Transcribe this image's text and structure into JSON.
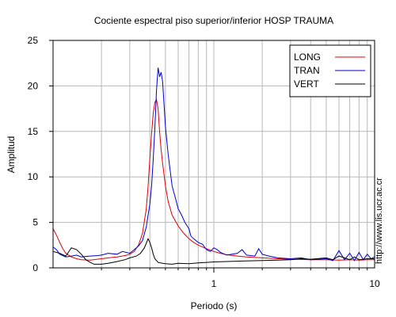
{
  "credit": "http://www.lis.ucr.ac.cr",
  "chart_data": {
    "type": "line",
    "title": "Cociente espectral piso superior/inferior  HOSP TRAUMA",
    "xlabel": "Periodo (s)",
    "ylabel": "Amplitud",
    "x_scale": "log",
    "xlim": [
      0.1,
      10
    ],
    "ylim": [
      0,
      25
    ],
    "x_ticks": [
      1,
      10
    ],
    "x_tick_labels": [
      "1",
      "10"
    ],
    "y_ticks": [
      0,
      5,
      10,
      15,
      20,
      25
    ],
    "y_tick_labels": [
      "0",
      "5",
      "10",
      "15",
      "20",
      "25"
    ],
    "grid": true,
    "legend_position": "top-right",
    "series": [
      {
        "name": "LONG",
        "color": "#e0000a",
        "points": [
          [
            0.1,
            4.3
          ],
          [
            0.105,
            3.6
          ],
          [
            0.11,
            2.8
          ],
          [
            0.115,
            2.1
          ],
          [
            0.12,
            1.6
          ],
          [
            0.13,
            1.2
          ],
          [
            0.14,
            1.0
          ],
          [
            0.15,
            0.9
          ],
          [
            0.17,
            0.85
          ],
          [
            0.2,
            1.0
          ],
          [
            0.22,
            1.1
          ],
          [
            0.25,
            1.2
          ],
          [
            0.28,
            1.35
          ],
          [
            0.3,
            1.5
          ],
          [
            0.32,
            1.8
          ],
          [
            0.34,
            2.5
          ],
          [
            0.36,
            3.8
          ],
          [
            0.38,
            6.5
          ],
          [
            0.39,
            9.0
          ],
          [
            0.4,
            12.0
          ],
          [
            0.41,
            14.8
          ],
          [
            0.42,
            17.0
          ],
          [
            0.43,
            18.2
          ],
          [
            0.44,
            18.5
          ],
          [
            0.45,
            17.5
          ],
          [
            0.46,
            15.0
          ],
          [
            0.47,
            13.0
          ],
          [
            0.48,
            11.5
          ],
          [
            0.5,
            9.0
          ],
          [
            0.52,
            7.3
          ],
          [
            0.55,
            5.8
          ],
          [
            0.6,
            4.6
          ],
          [
            0.65,
            3.8
          ],
          [
            0.7,
            3.2
          ],
          [
            0.75,
            2.8
          ],
          [
            0.8,
            2.5
          ],
          [
            0.9,
            2.1
          ],
          [
            1.0,
            1.8
          ],
          [
            1.1,
            1.6
          ],
          [
            1.2,
            1.45
          ],
          [
            1.4,
            1.3
          ],
          [
            1.6,
            1.2
          ],
          [
            2.0,
            1.1
          ],
          [
            2.5,
            1.0
          ],
          [
            3.0,
            0.95
          ],
          [
            4.0,
            0.9
          ],
          [
            5.0,
            0.9
          ],
          [
            6.0,
            0.85
          ],
          [
            7.0,
            0.9
          ],
          [
            8.0,
            0.85
          ],
          [
            9.0,
            0.9
          ],
          [
            10.0,
            0.9
          ]
        ]
      },
      {
        "name": "TRAN",
        "color": "#0000d0",
        "points": [
          [
            0.1,
            2.3
          ],
          [
            0.105,
            2.0
          ],
          [
            0.11,
            1.5
          ],
          [
            0.12,
            1.2
          ],
          [
            0.13,
            1.3
          ],
          [
            0.14,
            1.4
          ],
          [
            0.15,
            1.2
          ],
          [
            0.16,
            1.25
          ],
          [
            0.17,
            1.3
          ],
          [
            0.19,
            1.35
          ],
          [
            0.2,
            1.4
          ],
          [
            0.22,
            1.6
          ],
          [
            0.25,
            1.5
          ],
          [
            0.27,
            1.8
          ],
          [
            0.3,
            1.6
          ],
          [
            0.32,
            2.0
          ],
          [
            0.34,
            2.4
          ],
          [
            0.36,
            3.0
          ],
          [
            0.38,
            4.5
          ],
          [
            0.4,
            7.0
          ],
          [
            0.41,
            9.0
          ],
          [
            0.42,
            12.0
          ],
          [
            0.43,
            15.5
          ],
          [
            0.44,
            19.5
          ],
          [
            0.45,
            22.0
          ],
          [
            0.46,
            21.0
          ],
          [
            0.47,
            21.5
          ],
          [
            0.48,
            20.5
          ],
          [
            0.49,
            18.0
          ],
          [
            0.5,
            15.5
          ],
          [
            0.52,
            12.5
          ],
          [
            0.55,
            9.0
          ],
          [
            0.58,
            7.5
          ],
          [
            0.6,
            6.5
          ],
          [
            0.63,
            5.8
          ],
          [
            0.66,
            5.0
          ],
          [
            0.7,
            4.3
          ],
          [
            0.72,
            3.5
          ],
          [
            0.75,
            3.2
          ],
          [
            0.8,
            2.8
          ],
          [
            0.85,
            2.6
          ],
          [
            0.9,
            2.0
          ],
          [
            0.95,
            1.8
          ],
          [
            1.0,
            2.2
          ],
          [
            1.05,
            2.0
          ],
          [
            1.1,
            1.7
          ],
          [
            1.2,
            1.4
          ],
          [
            1.3,
            1.5
          ],
          [
            1.4,
            1.6
          ],
          [
            1.5,
            2.0
          ],
          [
            1.6,
            1.4
          ],
          [
            1.8,
            1.3
          ],
          [
            1.9,
            2.1
          ],
          [
            2.0,
            1.5
          ],
          [
            2.2,
            1.3
          ],
          [
            2.5,
            1.1
          ],
          [
            3.0,
            1.0
          ],
          [
            3.5,
            1.1
          ],
          [
            4.0,
            0.9
          ],
          [
            5.0,
            1.0
          ],
          [
            5.5,
            0.8
          ],
          [
            6.0,
            1.9
          ],
          [
            6.5,
            0.9
          ],
          [
            7.0,
            1.6
          ],
          [
            7.5,
            0.8
          ],
          [
            8.0,
            1.7
          ],
          [
            8.5,
            0.9
          ],
          [
            9.0,
            1.5
          ],
          [
            9.5,
            1.0
          ],
          [
            10.0,
            1.2
          ]
        ]
      },
      {
        "name": "VERT",
        "color": "#000000",
        "points": [
          [
            0.1,
            1.8
          ],
          [
            0.11,
            1.6
          ],
          [
            0.12,
            1.3
          ],
          [
            0.13,
            2.2
          ],
          [
            0.14,
            2.0
          ],
          [
            0.15,
            1.5
          ],
          [
            0.16,
            0.9
          ],
          [
            0.17,
            0.6
          ],
          [
            0.18,
            0.4
          ],
          [
            0.2,
            0.4
          ],
          [
            0.22,
            0.5
          ],
          [
            0.25,
            0.7
          ],
          [
            0.28,
            0.9
          ],
          [
            0.3,
            1.1
          ],
          [
            0.33,
            1.3
          ],
          [
            0.35,
            1.6
          ],
          [
            0.37,
            2.2
          ],
          [
            0.38,
            2.7
          ],
          [
            0.39,
            3.2
          ],
          [
            0.4,
            2.8
          ],
          [
            0.41,
            2.2
          ],
          [
            0.42,
            1.5
          ],
          [
            0.43,
            1.0
          ],
          [
            0.45,
            0.6
          ],
          [
            0.48,
            0.5
          ],
          [
            0.5,
            0.45
          ],
          [
            0.55,
            0.4
          ],
          [
            0.6,
            0.5
          ],
          [
            0.7,
            0.45
          ],
          [
            0.8,
            0.55
          ],
          [
            0.9,
            0.6
          ],
          [
            1.0,
            0.65
          ],
          [
            1.2,
            0.7
          ],
          [
            1.5,
            0.75
          ],
          [
            2.0,
            0.8
          ],
          [
            2.5,
            0.85
          ],
          [
            3.0,
            0.9
          ],
          [
            3.5,
            1.0
          ],
          [
            4.0,
            0.95
          ],
          [
            5.0,
            1.1
          ],
          [
            5.5,
            0.9
          ],
          [
            6.0,
            1.3
          ],
          [
            6.5,
            1.1
          ],
          [
            7.0,
            0.9
          ],
          [
            7.5,
            1.2
          ],
          [
            8.0,
            0.9
          ],
          [
            9.0,
            1.0
          ],
          [
            10.0,
            1.0
          ]
        ]
      }
    ]
  }
}
